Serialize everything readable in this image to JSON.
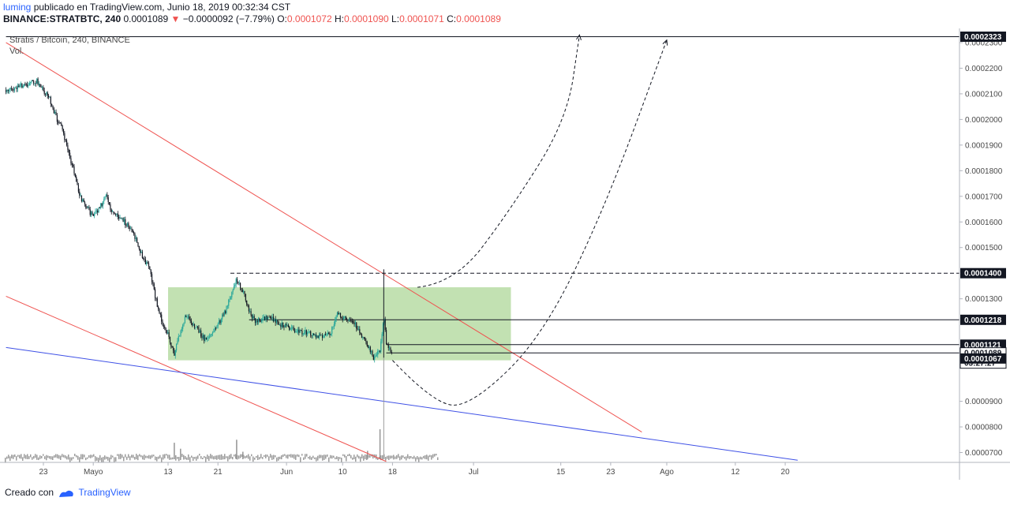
{
  "header": {
    "username": "luming",
    "published_text": "publicado en TradingView.com, Junio 18, 2019 00:32:34 CST",
    "symbol": "BINANCE:STRATBTC, 240",
    "last_price": "0.0001089",
    "change_arrow": "▼",
    "change": "−0.0000092 (−7.79%)",
    "o_label": "O:",
    "o_value": "0.0001072",
    "h_label": "H:",
    "h_value": "0.0001090",
    "l_label": "L:",
    "l_value": "0.0001071",
    "c_label": "C:",
    "c_value": "0.0001089"
  },
  "legend": {
    "series_title": "Stratis / Bitcoin, 240, BINANCE",
    "volume_label": "Vol."
  },
  "footer": {
    "created_with": "Creado con",
    "brand": "TradingView"
  },
  "colors": {
    "up": "#26a69a",
    "down": "#131722",
    "trend_red": "#ef5350",
    "trend_blue": "#3f51e6",
    "box_fill": "#b7dca4",
    "volume": "#9b9b9b",
    "accent": "#2962ff"
  },
  "chart_data": {
    "type": "candlestick",
    "y_scale": {
      "min": 6.5e-05,
      "max": 0.000233
    },
    "y_ticks": [
      "0.0000700",
      "0.0000800",
      "0.0000900",
      "0.0001300",
      "0.0001500",
      "0.0001600",
      "0.0001700",
      "0.0001800",
      "0.0001900",
      "0.0002000",
      "0.0002100",
      "0.0002200",
      "0.0002300"
    ],
    "x_ticks": [
      {
        "label": "23",
        "date": "2019-04-23"
      },
      {
        "label": "Mayo",
        "date": "2019-05-01"
      },
      {
        "label": "13",
        "date": "2019-05-13"
      },
      {
        "label": "21",
        "date": "2019-05-21"
      },
      {
        "label": "Jun",
        "date": "2019-06-01"
      },
      {
        "label": "10",
        "date": "2019-06-10"
      },
      {
        "label": "18",
        "date": "2019-06-18"
      },
      {
        "label": "Jul",
        "date": "2019-07-01"
      },
      {
        "label": "15",
        "date": "2019-07-15"
      },
      {
        "label": "23",
        "date": "2019-07-23"
      },
      {
        "label": "Ago",
        "date": "2019-08-01"
      },
      {
        "label": "12",
        "date": "2019-08-12"
      },
      {
        "label": "20",
        "date": "2019-08-20"
      }
    ],
    "price_labels": [
      {
        "value": "0.0002323",
        "style": "highlight"
      },
      {
        "value": "0.0001400",
        "style": "highlight"
      },
      {
        "value": "0.0001218",
        "style": "highlight"
      },
      {
        "value": "0.0001121",
        "style": "highlight"
      },
      {
        "value": "0.0001089",
        "style": "current"
      },
      {
        "value": "03:27:27",
        "style": "countdown"
      },
      {
        "value": "0.0001067",
        "style": "highlight"
      }
    ],
    "price_path": [
      {
        "date": "2019-04-17",
        "price": 0.0002115
      },
      {
        "date": "2019-04-20",
        "price": 0.0002135
      },
      {
        "date": "2019-04-22",
        "price": 0.000215
      },
      {
        "date": "2019-04-24",
        "price": 0.000208
      },
      {
        "date": "2019-04-25",
        "price": 0.000201
      },
      {
        "date": "2019-04-26",
        "price": 0.000196
      },
      {
        "date": "2019-04-28",
        "price": 0.000179
      },
      {
        "date": "2019-04-29",
        "price": 0.000169
      },
      {
        "date": "2019-05-01",
        "price": 0.000162
      },
      {
        "date": "2019-05-02",
        "price": 0.000165
      },
      {
        "date": "2019-05-03",
        "price": 0.000171
      },
      {
        "date": "2019-05-04",
        "price": 0.000164
      },
      {
        "date": "2019-05-06",
        "price": 0.00016
      },
      {
        "date": "2019-05-07",
        "price": 0.000157
      },
      {
        "date": "2019-05-08",
        "price": 0.000152
      },
      {
        "date": "2019-05-09",
        "price": 0.000146
      },
      {
        "date": "2019-05-10",
        "price": 0.000142
      },
      {
        "date": "2019-05-11",
        "price": 0.00013
      },
      {
        "date": "2019-05-12",
        "price": 0.000121
      },
      {
        "date": "2019-05-13",
        "price": 0.000116
      },
      {
        "date": "2019-05-14",
        "price": 0.000108
      },
      {
        "date": "2019-05-15",
        "price": 0.000118
      },
      {
        "date": "2019-05-16",
        "price": 0.000124
      },
      {
        "date": "2019-05-17",
        "price": 0.00012
      },
      {
        "date": "2019-05-18",
        "price": 0.000117
      },
      {
        "date": "2019-05-19",
        "price": 0.000114
      },
      {
        "date": "2019-05-20",
        "price": 0.000116
      },
      {
        "date": "2019-05-21",
        "price": 0.00012
      },
      {
        "date": "2019-05-22",
        "price": 0.000124
      },
      {
        "date": "2019-05-24",
        "price": 0.000138
      },
      {
        "date": "2019-05-25",
        "price": 0.000133
      },
      {
        "date": "2019-05-26",
        "price": 0.000125
      },
      {
        "date": "2019-05-27",
        "price": 0.000121
      },
      {
        "date": "2019-05-29",
        "price": 0.000123
      },
      {
        "date": "2019-05-31",
        "price": 0.00012
      },
      {
        "date": "2019-06-02",
        "price": 0.000118
      },
      {
        "date": "2019-06-04",
        "price": 0.000117
      },
      {
        "date": "2019-06-06",
        "price": 0.000115
      },
      {
        "date": "2019-06-08",
        "price": 0.000116
      },
      {
        "date": "2019-06-09",
        "price": 0.000124
      },
      {
        "date": "2019-06-10",
        "price": 0.000123
      },
      {
        "date": "2019-06-11",
        "price": 0.000121
      },
      {
        "date": "2019-06-12",
        "price": 0.00012
      },
      {
        "date": "2019-06-13",
        "price": 0.000116
      },
      {
        "date": "2019-06-14",
        "price": 0.000112
      },
      {
        "date": "2019-06-15",
        "price": 0.000107
      },
      {
        "date": "2019-06-16",
        "price": 0.00011
      },
      {
        "date": "2019-06-16.6",
        "price": 0.000123
      },
      {
        "date": "2019-06-17",
        "price": 0.000113
      },
      {
        "date": "2019-06-18",
        "price": 0.0001089
      }
    ],
    "volume_bars": [
      {
        "date": "2019-05-14",
        "level": 0.55
      },
      {
        "date": "2019-05-15",
        "level": 0.35
      },
      {
        "date": "2019-05-24",
        "level": 0.65
      },
      {
        "date": "2019-05-25",
        "level": 0.25
      },
      {
        "date": "2019-06-14",
        "level": 0.28
      },
      {
        "date": "2019-06-16",
        "level": 1.0
      }
    ],
    "trendlines": [
      {
        "name": "upper-resistance",
        "color": "red",
        "from": {
          "date": "2019-04-17",
          "price": 0.00023
        },
        "to": {
          "date": "2019-07-28",
          "price": 7.8e-05
        }
      },
      {
        "name": "lower-channel",
        "color": "red",
        "from": {
          "date": "2019-04-17",
          "price": 0.000131
        },
        "to": {
          "date": "2019-06-17",
          "price": 6.65e-05
        }
      },
      {
        "name": "support",
        "color": "blue",
        "from": {
          "date": "2019-04-17",
          "price": 0.000111
        },
        "to": {
          "date": "2019-08-22",
          "price": 6.7e-05
        }
      }
    ],
    "horizontal_lines": [
      {
        "price": 0.0002323,
        "style": "solid",
        "from": "2019-04-17"
      },
      {
        "price": 0.00014,
        "style": "dashed",
        "from": "2019-05-23"
      },
      {
        "price": 0.0001218,
        "style": "solid",
        "from": "2019-05-26"
      },
      {
        "price": 0.0001121,
        "style": "solid",
        "from": "2019-06-17"
      },
      {
        "price": 0.0001089,
        "style": "solid",
        "from": "2019-06-17"
      }
    ],
    "range_box": {
      "from": "2019-05-13",
      "to": "2019-07-07",
      "price_low": 0.000106,
      "price_high": 0.0001345
    },
    "projection_paths": [
      {
        "name": "projection-1",
        "points": [
          {
            "date": "2019-06-22",
            "price": 0.0001345
          },
          {
            "date": "2019-06-28",
            "price": 0.000136
          },
          {
            "date": "2019-07-07",
            "price": 0.000165
          },
          {
            "date": "2019-07-16",
            "price": 0.0002
          },
          {
            "date": "2019-07-18",
            "price": 0.000233
          }
        ]
      },
      {
        "name": "projection-2",
        "points": [
          {
            "date": "2019-06-18",
            "price": 0.000106
          },
          {
            "date": "2019-06-25",
            "price": 8.8e-05
          },
          {
            "date": "2019-07-01",
            "price": 8.9e-05
          },
          {
            "date": "2019-07-12",
            "price": 0.000115
          },
          {
            "date": "2019-07-22",
            "price": 0.000165
          },
          {
            "date": "2019-08-01",
            "price": 0.000231
          }
        ]
      }
    ]
  }
}
